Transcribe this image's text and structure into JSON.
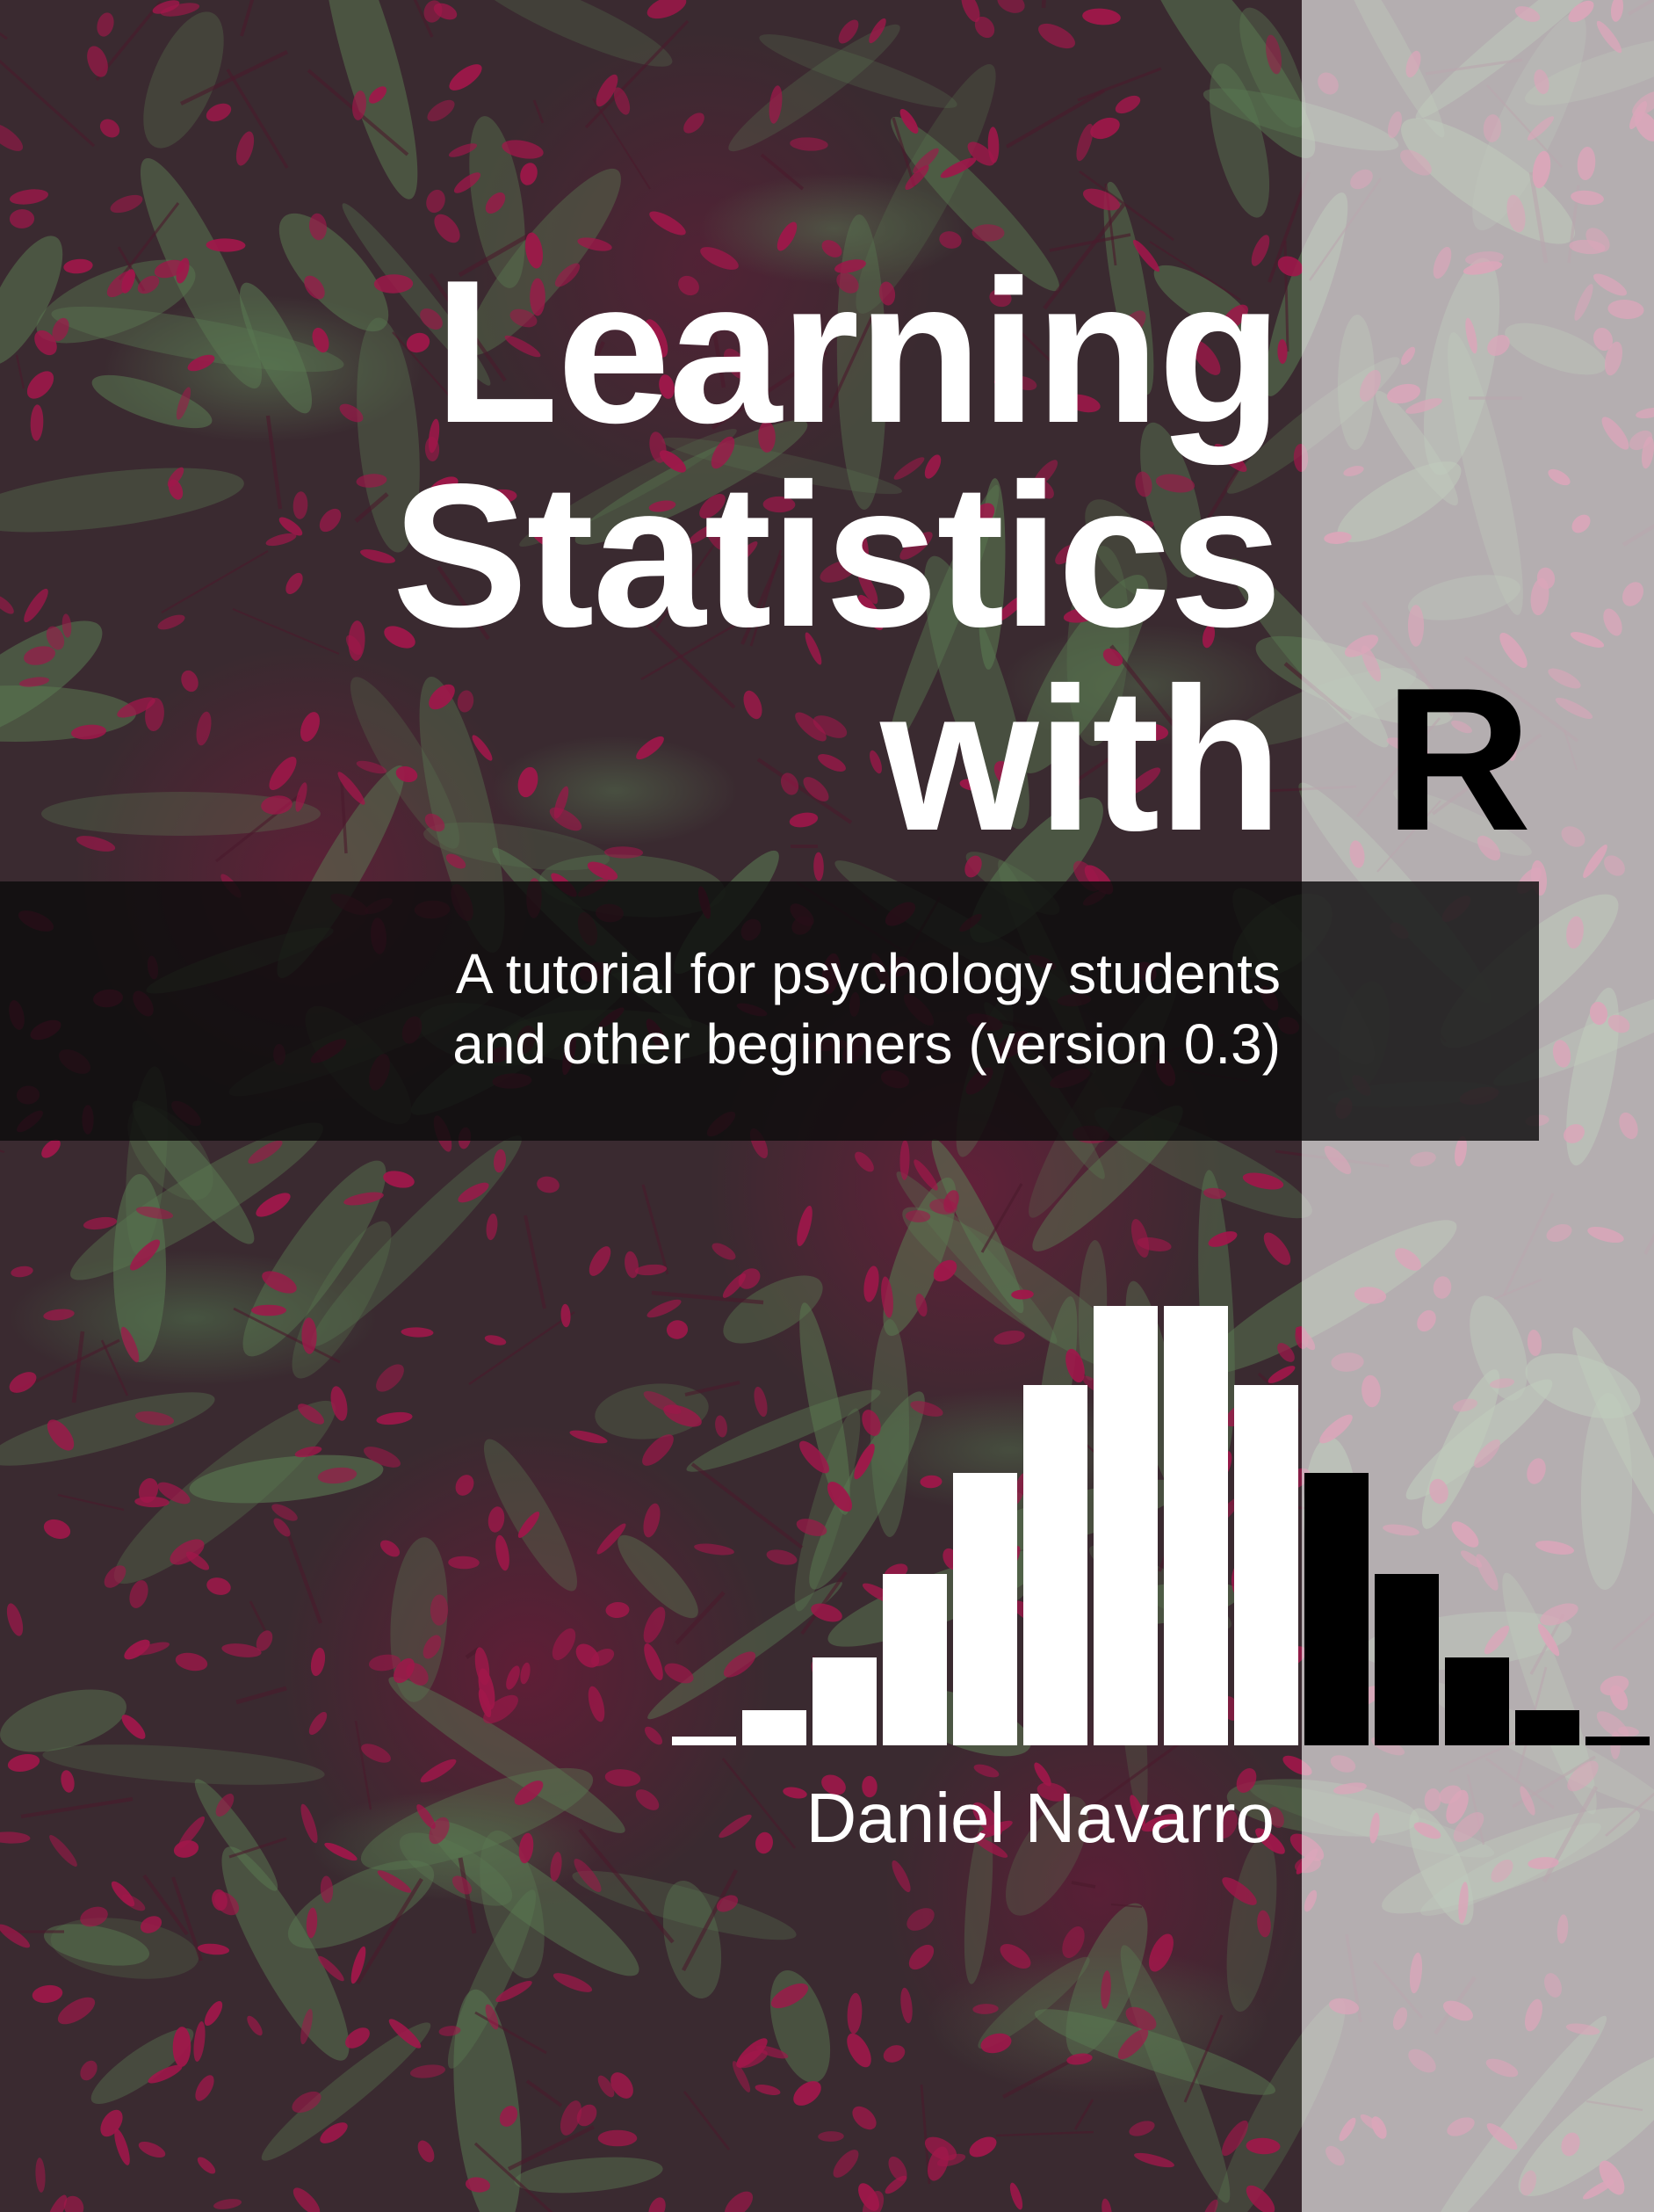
{
  "cover": {
    "title_lines": [
      "Learning",
      "Statistics",
      "with"
    ],
    "title_r": "R",
    "subtitle_lines": [
      "A tutorial for psychology students",
      "and other beginners (version 0.3)"
    ],
    "author": "Daniel Navarro"
  },
  "histogram_bars": [
    0.02,
    0.08,
    0.2,
    0.39,
    0.62,
    0.82,
    1.0,
    1.0,
    0.82,
    0.62,
    0.39,
    0.2,
    0.08,
    0.02
  ],
  "colors": {
    "title_text": "#ffffff",
    "title_r": "#000000",
    "bars_left": "#ffffff",
    "bars_right": "#000000",
    "subtitle_band": "#0c0c0c",
    "buds": "#a0174a",
    "leaves": "#5a7a52"
  }
}
